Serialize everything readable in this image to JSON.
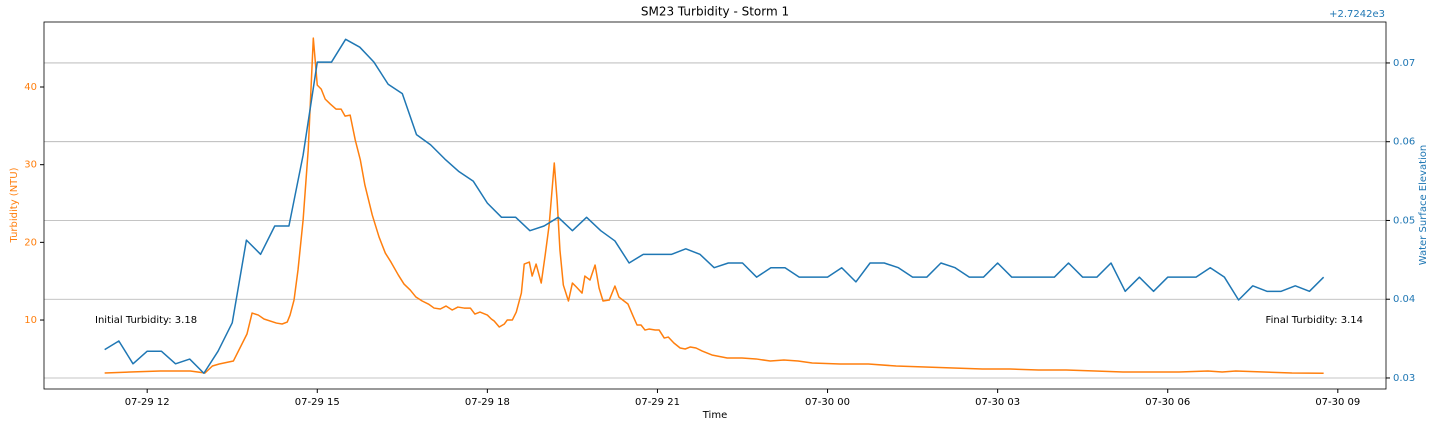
{
  "chart_data": {
    "type": "line",
    "title": "SM23 Turbidity - Storm 1",
    "xlabel": "Time",
    "ylabel": "Turbidity (NTU)",
    "y2label": "Water Surface Elevation",
    "y2offset": "+2.7242e3",
    "annotations": [
      "Initial Turbidity: 3.18",
      "Final Turbidity: 3.14"
    ],
    "grid": "y2",
    "xlim": [
      10.18,
      33.85
    ],
    "xticks": [
      {
        "value": 12,
        "label": "07-29 12"
      },
      {
        "value": 15,
        "label": "07-29 15"
      },
      {
        "value": 18,
        "label": "07-29 18"
      },
      {
        "value": 21,
        "label": "07-29 21"
      },
      {
        "value": 24,
        "label": "07-30 00"
      },
      {
        "value": 27,
        "label": "07-30 03"
      },
      {
        "value": 30,
        "label": "07-30 06"
      },
      {
        "value": 33,
        "label": "07-30 09"
      }
    ],
    "ylim": [
      1.12,
      48.37
    ],
    "yticks": [
      10,
      20,
      30,
      40
    ],
    "y2lim": [
      2724.2286,
      2724.2752
    ],
    "y2ticks": [
      {
        "value": 2724.23,
        "label": "0.03"
      },
      {
        "value": 2724.24,
        "label": "0.04"
      },
      {
        "value": 2724.25,
        "label": "0.05"
      },
      {
        "value": 2724.26,
        "label": "0.06"
      },
      {
        "value": 2724.27,
        "label": "0.07"
      }
    ],
    "series": [
      {
        "color": "#ff7f0e",
        "x": [
          11.25,
          11.7,
          12.23,
          12.76,
          13.02,
          13.15,
          13.27,
          13.52,
          13.76,
          13.85,
          13.96,
          14.06,
          14.28,
          14.38,
          14.47,
          14.52,
          14.59,
          14.66,
          14.75,
          14.84,
          14.93,
          15.0,
          15.07,
          15.14,
          15.23,
          15.33,
          15.42,
          15.49,
          15.58,
          15.67,
          15.76,
          15.84,
          15.97,
          16.09,
          16.2,
          16.3,
          16.43,
          16.53,
          16.64,
          16.74,
          16.85,
          16.96,
          17.06,
          17.17,
          17.27,
          17.38,
          17.48,
          17.59,
          17.7,
          17.78,
          17.87,
          18.0,
          18.07,
          18.12,
          18.21,
          18.3,
          18.35,
          18.44,
          18.51,
          18.6,
          18.65,
          18.74,
          18.79,
          18.86,
          18.95,
          19.02,
          19.09,
          19.18,
          19.23,
          19.28,
          19.34,
          19.43,
          19.5,
          19.57,
          19.67,
          19.72,
          19.81,
          19.9,
          19.97,
          20.04,
          20.15,
          20.25,
          20.32,
          20.41,
          20.48,
          20.57,
          20.64,
          20.71,
          20.78,
          20.85,
          20.96,
          21.03,
          21.12,
          21.19,
          21.29,
          21.4,
          21.49,
          21.58,
          21.68,
          21.79,
          21.96,
          22.23,
          22.49,
          22.74,
          22.99,
          23.23,
          23.48,
          23.73,
          24.22,
          24.72,
          25.21,
          25.72,
          26.22,
          26.73,
          27.22,
          27.72,
          28.21,
          28.72,
          29.21,
          29.71,
          30.2,
          30.71,
          30.96,
          31.2,
          31.7,
          32.19,
          32.75
        ],
        "values": [
          3.18,
          3.31,
          3.44,
          3.44,
          3.18,
          4.08,
          4.34,
          4.72,
          8.2,
          10.9,
          10.64,
          10.13,
          9.61,
          9.49,
          9.74,
          10.64,
          12.57,
          16.44,
          22.87,
          31.88,
          46.29,
          40.24,
          39.73,
          38.44,
          37.8,
          37.16,
          37.16,
          36.25,
          36.38,
          33.17,
          30.59,
          27.37,
          23.51,
          20.68,
          18.62,
          17.46,
          15.79,
          14.63,
          13.86,
          12.96,
          12.45,
          12.06,
          11.54,
          11.42,
          11.8,
          11.29,
          11.67,
          11.54,
          11.54,
          10.77,
          11.03,
          10.64,
          10.13,
          9.87,
          9.1,
          9.49,
          10.0,
          10.0,
          11.03,
          13.47,
          17.21,
          17.46,
          15.66,
          17.21,
          14.76,
          18.37,
          22.23,
          30.21,
          25.44,
          19.01,
          14.5,
          12.45,
          14.76,
          14.25,
          13.47,
          15.66,
          15.15,
          17.08,
          14.12,
          12.45,
          12.57,
          14.38,
          12.96,
          12.45,
          12.06,
          10.51,
          9.36,
          9.36,
          8.71,
          8.84,
          8.71,
          8.71,
          7.68,
          7.81,
          7.04,
          6.4,
          6.27,
          6.53,
          6.4,
          6.01,
          5.5,
          5.11,
          5.11,
          4.99,
          4.72,
          4.85,
          4.72,
          4.47,
          4.34,
          4.34,
          4.08,
          3.95,
          3.82,
          3.69,
          3.69,
          3.56,
          3.56,
          3.44,
          3.31,
          3.31,
          3.31,
          3.44,
          3.31,
          3.44,
          3.31,
          3.18,
          3.14
        ]
      },
      {
        "color": "#1f77b4",
        "axis": "y2",
        "x": [
          11.25,
          11.5,
          11.75,
          12.0,
          12.25,
          12.5,
          12.75,
          13.0,
          13.25,
          13.5,
          13.75,
          14.0,
          14.25,
          14.5,
          14.75,
          15.0,
          15.25,
          15.5,
          15.75,
          16.0,
          16.25,
          16.5,
          16.75,
          17.0,
          17.25,
          17.5,
          17.75,
          18.0,
          18.25,
          18.5,
          18.75,
          19.0,
          19.25,
          19.5,
          19.75,
          20.0,
          20.25,
          20.5,
          20.75,
          21.0,
          21.25,
          21.5,
          21.75,
          22.0,
          22.25,
          22.5,
          22.75,
          23.0,
          23.25,
          23.5,
          23.75,
          24.0,
          24.25,
          24.5,
          24.75,
          25.0,
          25.25,
          25.5,
          25.75,
          26.0,
          26.25,
          26.5,
          26.75,
          27.0,
          27.25,
          27.5,
          27.75,
          28.0,
          28.25,
          28.5,
          28.75,
          29.0,
          29.25,
          29.5,
          29.75,
          30.0,
          30.25,
          30.5,
          30.75,
          31.0,
          31.25,
          31.5,
          31.75,
          32.0,
          32.25,
          32.5,
          32.75
        ],
        "values": [
          2724.2336,
          2724.2347,
          2724.2318,
          2724.2334,
          2724.2334,
          2724.2318,
          2724.2324,
          2724.2306,
          2724.2334,
          2724.237,
          2724.2475,
          2724.2457,
          2724.2493,
          2724.2493,
          2724.2583,
          2724.2701,
          2724.2701,
          2724.273,
          2724.272,
          2724.2701,
          2724.2673,
          2724.2661,
          2724.2609,
          2724.2596,
          2724.2578,
          2724.2562,
          2724.255,
          2724.2522,
          2724.2504,
          2724.2504,
          2724.2487,
          2724.2493,
          2724.2504,
          2724.2487,
          2724.2504,
          2724.2487,
          2724.2474,
          2724.2446,
          2724.2457,
          2724.2457,
          2724.2457,
          2724.2464,
          2724.2457,
          2724.244,
          2724.2446,
          2724.2446,
          2724.2428,
          2724.244,
          2724.244,
          2724.2428,
          2724.2428,
          2724.2428,
          2724.244,
          2724.2422,
          2724.2446,
          2724.2446,
          2724.244,
          2724.2428,
          2724.2428,
          2724.2446,
          2724.244,
          2724.2428,
          2724.2428,
          2724.2446,
          2724.2428,
          2724.2428,
          2724.2428,
          2724.2428,
          2724.2446,
          2724.2428,
          2724.2428,
          2724.2446,
          2724.241,
          2724.2428,
          2724.241,
          2724.2428,
          2724.2428,
          2724.2428,
          2724.244,
          2724.2428,
          2724.2399,
          2724.2417,
          2724.241,
          2724.241,
          2724.2417,
          2724.241,
          2724.2428
        ]
      }
    ]
  }
}
